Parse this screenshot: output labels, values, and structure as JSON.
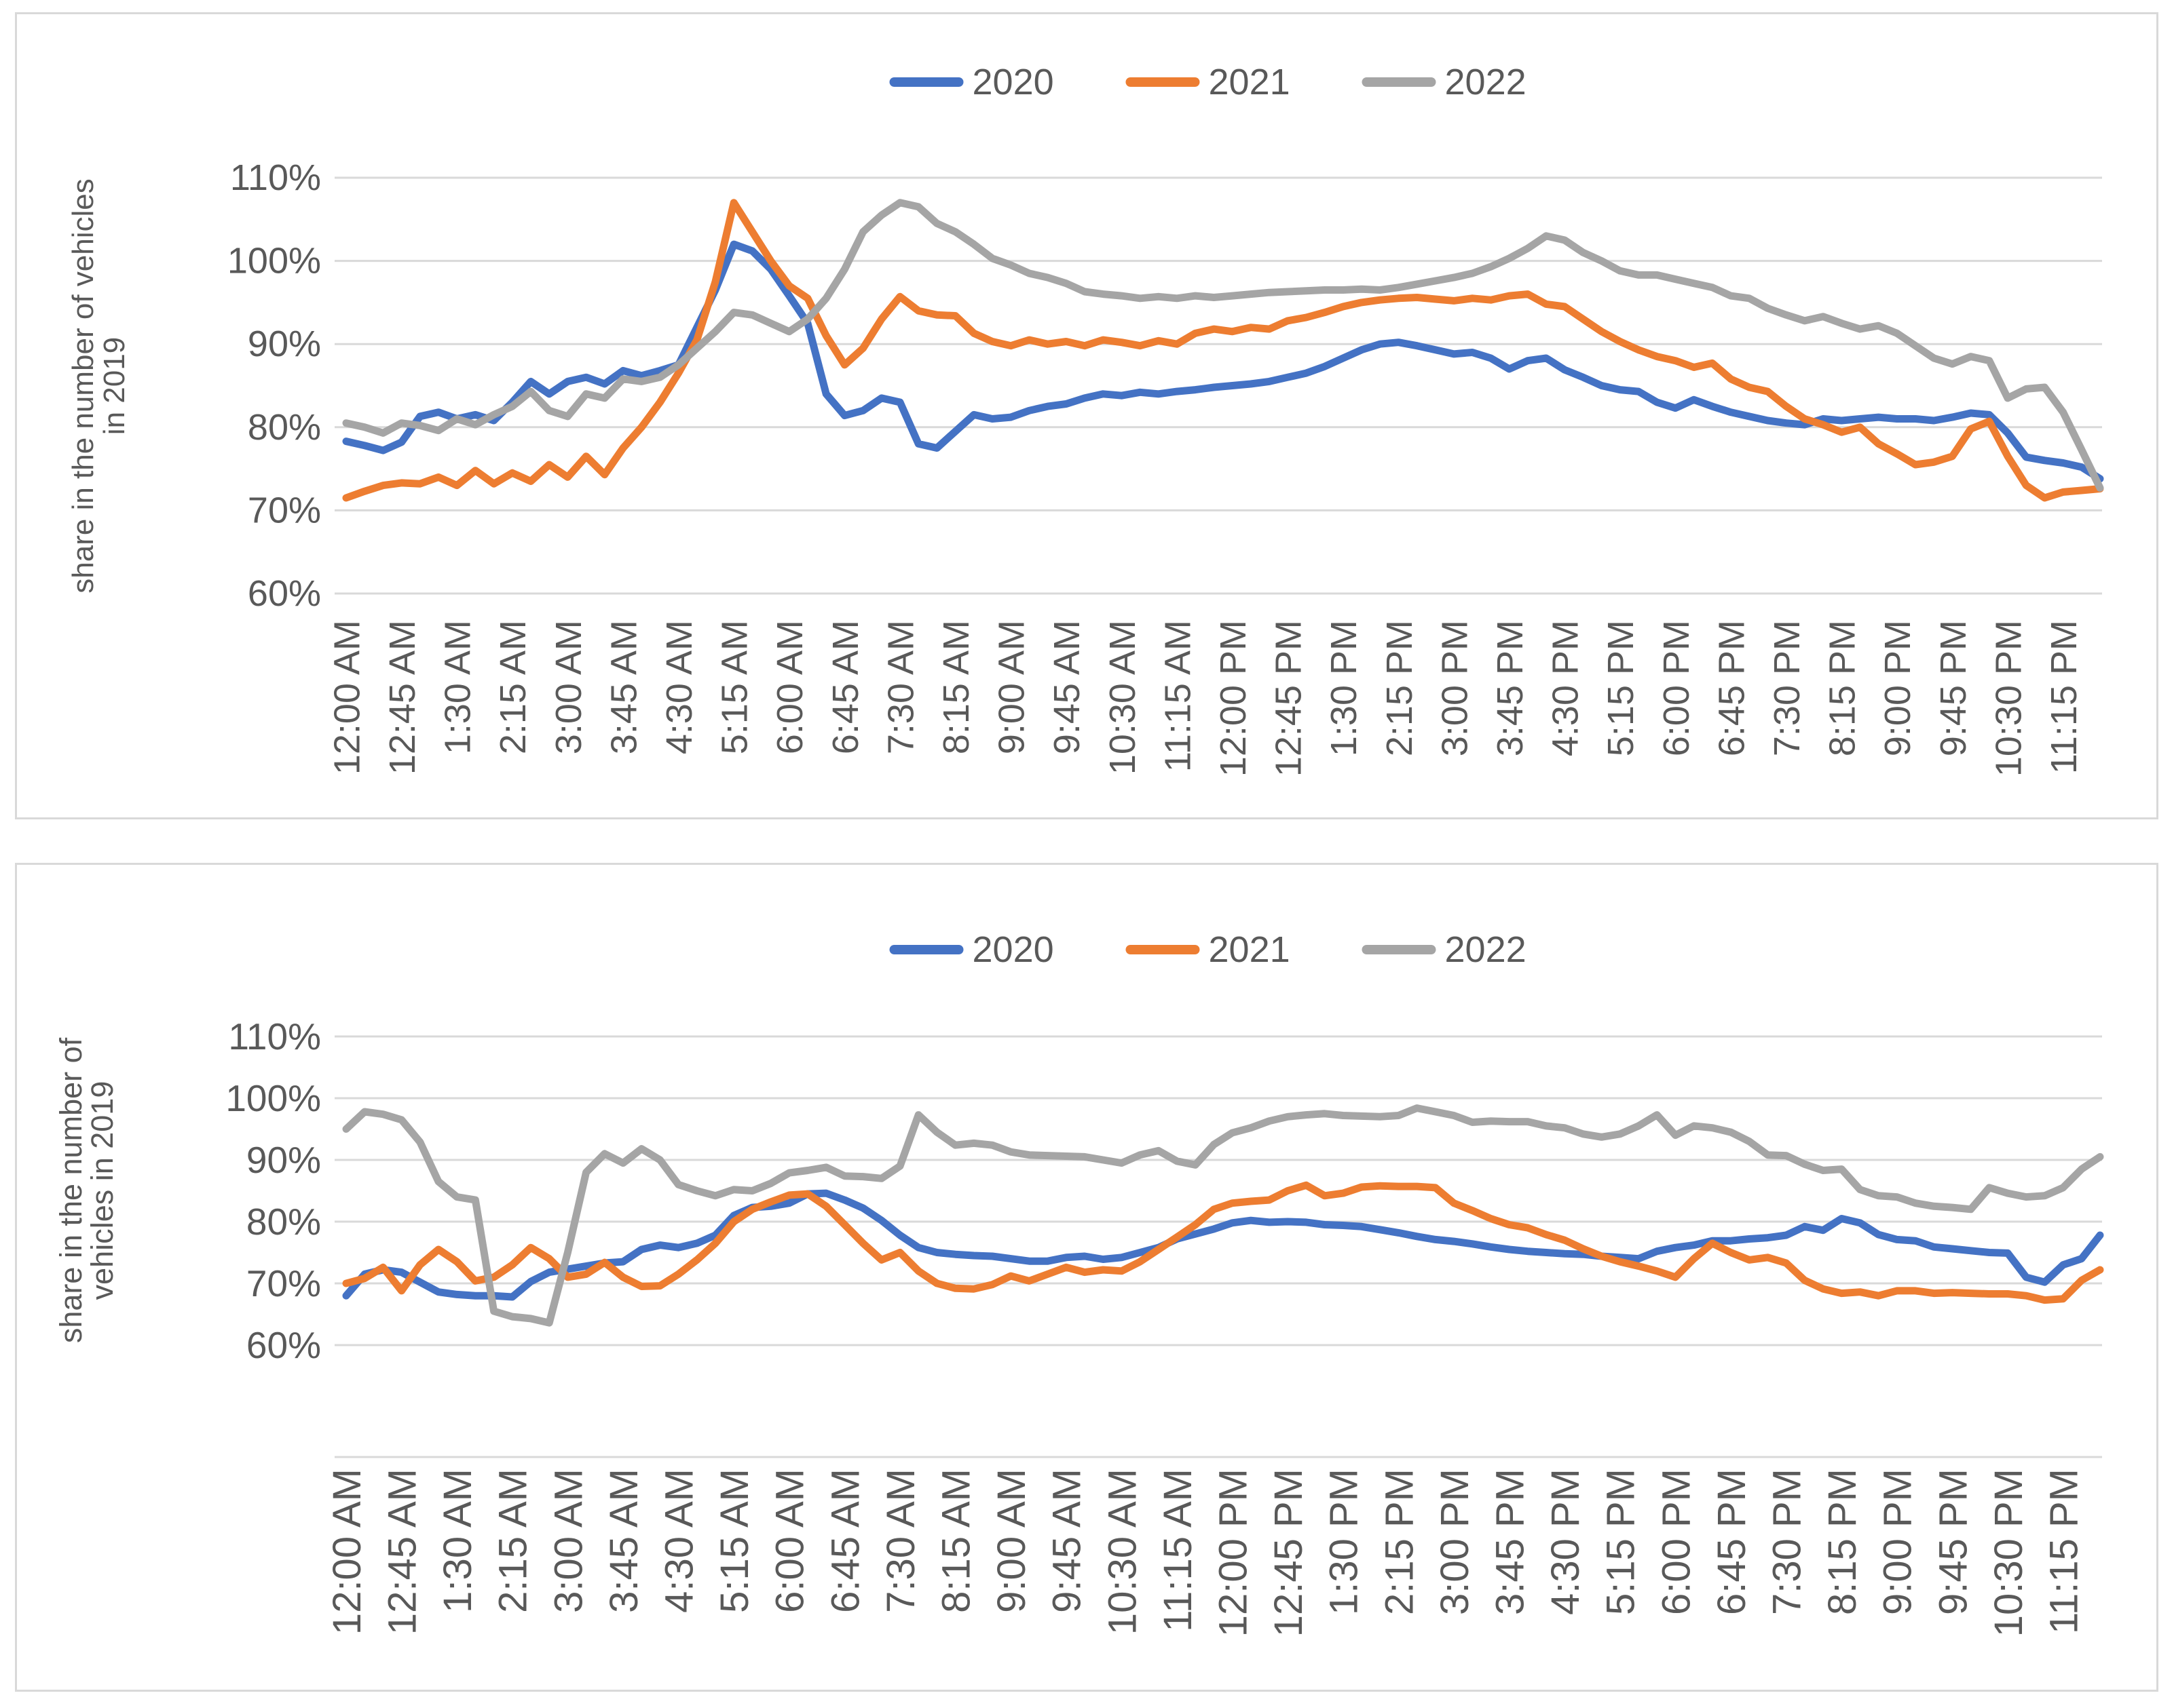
{
  "page": {
    "background": "#FFFFFF"
  },
  "style": {
    "series_colors": {
      "y2020": "#4472C4",
      "y2021": "#ED7D31",
      "y2022": "#A5A5A5"
    },
    "gridline_color": "#D9D9D9",
    "axis_text_color": "#595959",
    "card_border_color": "#D9D9D9"
  },
  "x_tick_labels_shown": [
    "12:00 AM",
    "12:45 AM",
    "1:30 AM",
    "2:15 AM",
    "3:00 AM",
    "3:45 AM",
    "4:30 AM",
    "5:15 AM",
    "6:00 AM",
    "6:45 AM",
    "7:30 AM",
    "8:15 AM",
    "9:00 AM",
    "9:45 AM",
    "10:30 AM",
    "11:15 AM",
    "12:00 PM",
    "12:45 PM",
    "1:30 PM",
    "2:15 PM",
    "3:00 PM",
    "3:45 PM",
    "4:30 PM",
    "5:15 PM",
    "6:00 PM",
    "6:45 PM",
    "7:30 PM",
    "8:15 PM",
    "9:00 PM",
    "9:45 PM",
    "10:30 PM",
    "11:15 PM"
  ],
  "chart_data": [
    {
      "id": "top",
      "type": "line",
      "title": "",
      "ylabel": "share in the number of vehicles in 2019",
      "ylabel_lines": [
        "share in the number of vehicles",
        "in 2019"
      ],
      "ylim": [
        60,
        110
      ],
      "yticks": [
        "110%",
        "100%",
        "90%",
        "80%",
        "70%",
        "60%"
      ],
      "grid": true,
      "legend_position": "top-center",
      "legend": [
        "2020",
        "2021",
        "2022"
      ],
      "x_label_every": 3,
      "categories": [
        "12:00 AM",
        "12:15 AM",
        "12:30 AM",
        "12:45 AM",
        "1:00 AM",
        "1:15 AM",
        "1:30 AM",
        "1:45 AM",
        "2:00 AM",
        "2:15 AM",
        "2:30 AM",
        "2:45 AM",
        "3:00 AM",
        "3:15 AM",
        "3:30 AM",
        "3:45 AM",
        "4:00 AM",
        "4:15 AM",
        "4:30 AM",
        "4:45 AM",
        "5:00 AM",
        "5:15 AM",
        "5:30 AM",
        "5:45 AM",
        "6:00 AM",
        "6:15 AM",
        "6:30 AM",
        "6:45 AM",
        "7:00 AM",
        "7:15 AM",
        "7:30 AM",
        "7:45 AM",
        "8:00 AM",
        "8:15 AM",
        "8:30 AM",
        "8:45 AM",
        "9:00 AM",
        "9:15 AM",
        "9:30 AM",
        "9:45 AM",
        "10:00 AM",
        "10:15 AM",
        "10:30 AM",
        "10:45 AM",
        "11:00 AM",
        "11:15 AM",
        "11:30 AM",
        "11:45 AM",
        "12:00 PM",
        "12:15 PM",
        "12:30 PM",
        "12:45 PM",
        "1:00 PM",
        "1:15 PM",
        "1:30 PM",
        "1:45 PM",
        "2:00 PM",
        "2:15 PM",
        "2:30 PM",
        "2:45 PM",
        "3:00 PM",
        "3:15 PM",
        "3:30 PM",
        "3:45 PM",
        "4:00 PM",
        "4:15 PM",
        "4:30 PM",
        "4:45 PM",
        "5:00 PM",
        "5:15 PM",
        "5:30 PM",
        "5:45 PM",
        "6:00 PM",
        "6:15 PM",
        "6:30 PM",
        "6:45 PM",
        "7:00 PM",
        "7:15 PM",
        "7:30 PM",
        "7:45 PM",
        "8:00 PM",
        "8:15 PM",
        "8:30 PM",
        "8:45 PM",
        "9:00 PM",
        "9:15 PM",
        "9:30 PM",
        "9:45 PM",
        "10:00 PM",
        "10:15 PM",
        "10:30 PM",
        "10:45 PM",
        "11:00 PM",
        "11:15 PM",
        "11:30 PM",
        "11:45 PM"
      ],
      "series": [
        {
          "name": "2020",
          "color": "#4472C4",
          "values": [
            78.3,
            77.8,
            77.2,
            78.2,
            81.3,
            81.8,
            81.0,
            81.5,
            80.8,
            83.0,
            85.5,
            84.0,
            85.5,
            86.0,
            85.2,
            86.8,
            86.2,
            86.8,
            87.5,
            92.0,
            96.5,
            102.0,
            101.2,
            99.0,
            95.8,
            92.5,
            84.0,
            81.4,
            82.0,
            83.5,
            83.0,
            78.0,
            77.5,
            79.5,
            81.5,
            81.0,
            81.2,
            82.0,
            82.5,
            82.8,
            83.5,
            84.0,
            83.8,
            84.2,
            84.0,
            84.3,
            84.5,
            84.8,
            85.0,
            85.2,
            85.5,
            86.0,
            86.5,
            87.3,
            88.3,
            89.3,
            90.0,
            90.2,
            89.8,
            89.3,
            88.8,
            89.0,
            88.3,
            87.0,
            88.0,
            88.3,
            86.9,
            86.0,
            85.0,
            84.5,
            84.3,
            83.0,
            82.3,
            83.3,
            82.5,
            81.8,
            81.3,
            80.8,
            80.5,
            80.3,
            81.0,
            80.8,
            81.0,
            81.2,
            81.0,
            81.0,
            80.8,
            81.2,
            81.7,
            81.5,
            79.3,
            76.4,
            76.0,
            75.7,
            75.2,
            73.8
          ]
        },
        {
          "name": "2021",
          "color": "#ED7D31",
          "values": [
            71.5,
            72.3,
            73.0,
            73.3,
            73.2,
            74.0,
            73.0,
            74.8,
            73.2,
            74.5,
            73.5,
            75.5,
            74.0,
            76.5,
            74.3,
            77.5,
            80.0,
            83.0,
            86.5,
            90.5,
            97.5,
            107.0,
            103.5,
            100.0,
            97.0,
            95.5,
            91.0,
            87.5,
            89.5,
            93.0,
            95.7,
            94.0,
            93.5,
            93.4,
            91.3,
            90.3,
            89.8,
            90.5,
            90.0,
            90.3,
            89.8,
            90.5,
            90.2,
            89.8,
            90.4,
            90.0,
            91.3,
            91.8,
            91.5,
            92.0,
            91.8,
            92.8,
            93.2,
            93.8,
            94.5,
            95.0,
            95.3,
            95.5,
            95.6,
            95.4,
            95.2,
            95.5,
            95.3,
            95.8,
            96.0,
            94.8,
            94.5,
            93.0,
            91.5,
            90.3,
            89.3,
            88.5,
            88.0,
            87.2,
            87.7,
            85.8,
            84.8,
            84.3,
            82.5,
            81.0,
            80.3,
            79.4,
            80.0,
            78.0,
            76.8,
            75.5,
            75.8,
            76.5,
            79.8,
            80.7,
            76.5,
            73.0,
            71.5,
            72.2,
            72.4,
            72.6
          ]
        },
        {
          "name": "2022",
          "color": "#A5A5A5",
          "values": [
            80.5,
            80.0,
            79.3,
            80.5,
            80.2,
            79.6,
            81.0,
            80.3,
            81.5,
            82.5,
            84.3,
            82.0,
            81.3,
            84.0,
            83.5,
            85.8,
            85.5,
            86.0,
            87.5,
            89.5,
            91.5,
            93.8,
            93.5,
            92.5,
            91.5,
            93.0,
            95.5,
            99.0,
            103.5,
            105.5,
            107.0,
            106.5,
            104.5,
            103.5,
            102.0,
            100.3,
            99.5,
            98.5,
            98.0,
            97.3,
            96.3,
            96.0,
            95.8,
            95.5,
            95.7,
            95.5,
            95.8,
            95.6,
            95.8,
            96.0,
            96.2,
            96.3,
            96.4,
            96.5,
            96.5,
            96.6,
            96.5,
            96.8,
            97.2,
            97.6,
            98.0,
            98.5,
            99.3,
            100.3,
            101.5,
            103.0,
            102.5,
            101.0,
            100.0,
            98.8,
            98.3,
            98.3,
            97.8,
            97.3,
            96.8,
            95.8,
            95.5,
            94.3,
            93.5,
            92.8,
            93.3,
            92.5,
            91.8,
            92.2,
            91.3,
            89.8,
            88.3,
            87.6,
            88.5,
            88.0,
            83.5,
            84.6,
            84.8,
            81.8,
            77.3,
            72.7
          ]
        }
      ]
    },
    {
      "id": "bottom",
      "type": "line",
      "title": "",
      "ylabel": "share in the number of vehicles in 2019",
      "ylabel_lines": [
        "share in the number of",
        "vehicles in 2019"
      ],
      "ylim": [
        60,
        110
      ],
      "yticks": [
        "110%",
        "100%",
        "90%",
        "80%",
        "70%",
        "60%"
      ],
      "grid": true,
      "legend_position": "top-center",
      "legend": [
        "2020",
        "2021",
        "2022"
      ],
      "x_label_every": 3,
      "categories": [
        "12:00 AM",
        "12:15 AM",
        "12:30 AM",
        "12:45 AM",
        "1:00 AM",
        "1:15 AM",
        "1:30 AM",
        "1:45 AM",
        "2:00 AM",
        "2:15 AM",
        "2:30 AM",
        "2:45 AM",
        "3:00 AM",
        "3:15 AM",
        "3:30 AM",
        "3:45 AM",
        "4:00 AM",
        "4:15 AM",
        "4:30 AM",
        "4:45 AM",
        "5:00 AM",
        "5:15 AM",
        "5:30 AM",
        "5:45 AM",
        "6:00 AM",
        "6:15 AM",
        "6:30 AM",
        "6:45 AM",
        "7:00 AM",
        "7:15 AM",
        "7:30 AM",
        "7:45 AM",
        "8:00 AM",
        "8:15 AM",
        "8:30 AM",
        "8:45 AM",
        "9:00 AM",
        "9:15 AM",
        "9:30 AM",
        "9:45 AM",
        "10:00 AM",
        "10:15 AM",
        "10:30 AM",
        "10:45 AM",
        "11:00 AM",
        "11:15 AM",
        "11:30 AM",
        "11:45 AM",
        "12:00 PM",
        "12:15 PM",
        "12:30 PM",
        "12:45 PM",
        "1:00 PM",
        "1:15 PM",
        "1:30 PM",
        "1:45 PM",
        "2:00 PM",
        "2:15 PM",
        "2:30 PM",
        "2:45 PM",
        "3:00 PM",
        "3:15 PM",
        "3:30 PM",
        "3:45 PM",
        "4:00 PM",
        "4:15 PM",
        "4:30 PM",
        "4:45 PM",
        "5:00 PM",
        "5:15 PM",
        "5:30 PM",
        "5:45 PM",
        "6:00 PM",
        "6:15 PM",
        "6:30 PM",
        "6:45 PM",
        "7:00 PM",
        "7:15 PM",
        "7:30 PM",
        "7:45 PM",
        "8:00 PM",
        "8:15 PM",
        "8:30 PM",
        "8:45 PM",
        "9:00 PM",
        "9:15 PM",
        "9:30 PM",
        "9:45 PM",
        "10:00 PM",
        "10:15 PM",
        "10:30 PM",
        "10:45 PM",
        "11:00 PM",
        "11:15 PM",
        "11:30 PM",
        "11:45 PM"
      ],
      "series": [
        {
          "name": "2020",
          "color": "#4472C4",
          "values": [
            68.0,
            71.5,
            72.2,
            71.8,
            70.2,
            68.6,
            68.2,
            68.0,
            68.0,
            67.8,
            70.3,
            71.8,
            72.3,
            72.8,
            73.3,
            73.5,
            75.5,
            76.2,
            75.8,
            76.5,
            77.8,
            81.0,
            82.3,
            82.5,
            83.0,
            84.5,
            84.6,
            83.5,
            82.2,
            80.2,
            77.8,
            75.8,
            75.0,
            74.7,
            74.5,
            74.4,
            74.0,
            73.6,
            73.6,
            74.2,
            74.4,
            73.9,
            74.2,
            75.0,
            75.8,
            77.2,
            78.0,
            78.8,
            79.8,
            80.2,
            79.9,
            80.0,
            79.9,
            79.5,
            79.4,
            79.2,
            78.7,
            78.2,
            77.6,
            77.1,
            76.8,
            76.4,
            75.9,
            75.5,
            75.2,
            75.0,
            74.8,
            74.7,
            74.4,
            74.2,
            74.0,
            75.2,
            75.8,
            76.2,
            76.9,
            76.9,
            77.2,
            77.4,
            77.8,
            79.2,
            78.6,
            80.5,
            79.8,
            77.9,
            77.1,
            76.9,
            75.9,
            75.6,
            75.3,
            75.0,
            74.9,
            71.0,
            70.2,
            73.0,
            74.0,
            77.8
          ]
        },
        {
          "name": "2021",
          "color": "#ED7D31",
          "values": [
            70.0,
            70.8,
            72.6,
            68.8,
            73.0,
            75.5,
            73.5,
            70.4,
            71.0,
            73.0,
            75.8,
            74.0,
            71.0,
            71.5,
            73.4,
            71.0,
            69.5,
            69.6,
            71.5,
            73.8,
            76.5,
            80.0,
            82.0,
            83.2,
            84.3,
            84.5,
            82.5,
            79.5,
            76.5,
            73.8,
            75.0,
            72.0,
            70.0,
            69.2,
            69.1,
            69.8,
            71.2,
            70.4,
            71.5,
            72.6,
            71.8,
            72.2,
            72.0,
            73.5,
            75.5,
            77.5,
            79.5,
            82.0,
            83.0,
            83.3,
            83.5,
            85.0,
            85.9,
            84.2,
            84.6,
            85.6,
            85.8,
            85.7,
            85.7,
            85.5,
            83.0,
            81.8,
            80.5,
            79.5,
            79.0,
            77.9,
            77.0,
            75.6,
            74.4,
            73.5,
            72.8,
            72.0,
            71.0,
            74.0,
            76.5,
            75.0,
            73.8,
            74.2,
            73.3,
            70.5,
            69.1,
            68.4,
            68.6,
            68.0,
            68.8,
            68.8,
            68.4,
            68.5,
            68.4,
            68.3,
            68.3,
            68.0,
            67.3,
            67.5,
            70.5,
            72.2
          ]
        },
        {
          "name": "2022",
          "color": "#A5A5A5",
          "values": [
            95.0,
            97.8,
            97.4,
            96.5,
            92.9,
            86.5,
            84.0,
            83.5,
            65.5,
            64.6,
            64.3,
            63.6,
            75.0,
            88.0,
            91.0,
            89.5,
            91.8,
            90.0,
            86.0,
            85.0,
            84.2,
            85.2,
            85.0,
            86.2,
            87.9,
            88.3,
            88.8,
            87.4,
            87.3,
            87.0,
            89.0,
            97.3,
            94.5,
            92.4,
            92.7,
            92.4,
            91.3,
            90.8,
            90.7,
            90.6,
            90.5,
            90.0,
            89.5,
            90.8,
            91.5,
            89.8,
            89.2,
            92.5,
            94.4,
            95.2,
            96.3,
            97.0,
            97.3,
            97.5,
            97.2,
            97.1,
            97.0,
            97.2,
            98.4,
            97.8,
            97.2,
            96.1,
            96.3,
            96.2,
            96.2,
            95.5,
            95.2,
            94.2,
            93.7,
            94.2,
            95.5,
            97.3,
            94.0,
            95.5,
            95.2,
            94.5,
            93.0,
            90.8,
            90.7,
            89.3,
            88.3,
            88.5,
            85.2,
            84.2,
            84.0,
            83.0,
            82.5,
            82.3,
            82.0,
            85.5,
            84.6,
            84.0,
            84.2,
            85.5,
            88.5,
            90.5
          ]
        }
      ]
    }
  ]
}
